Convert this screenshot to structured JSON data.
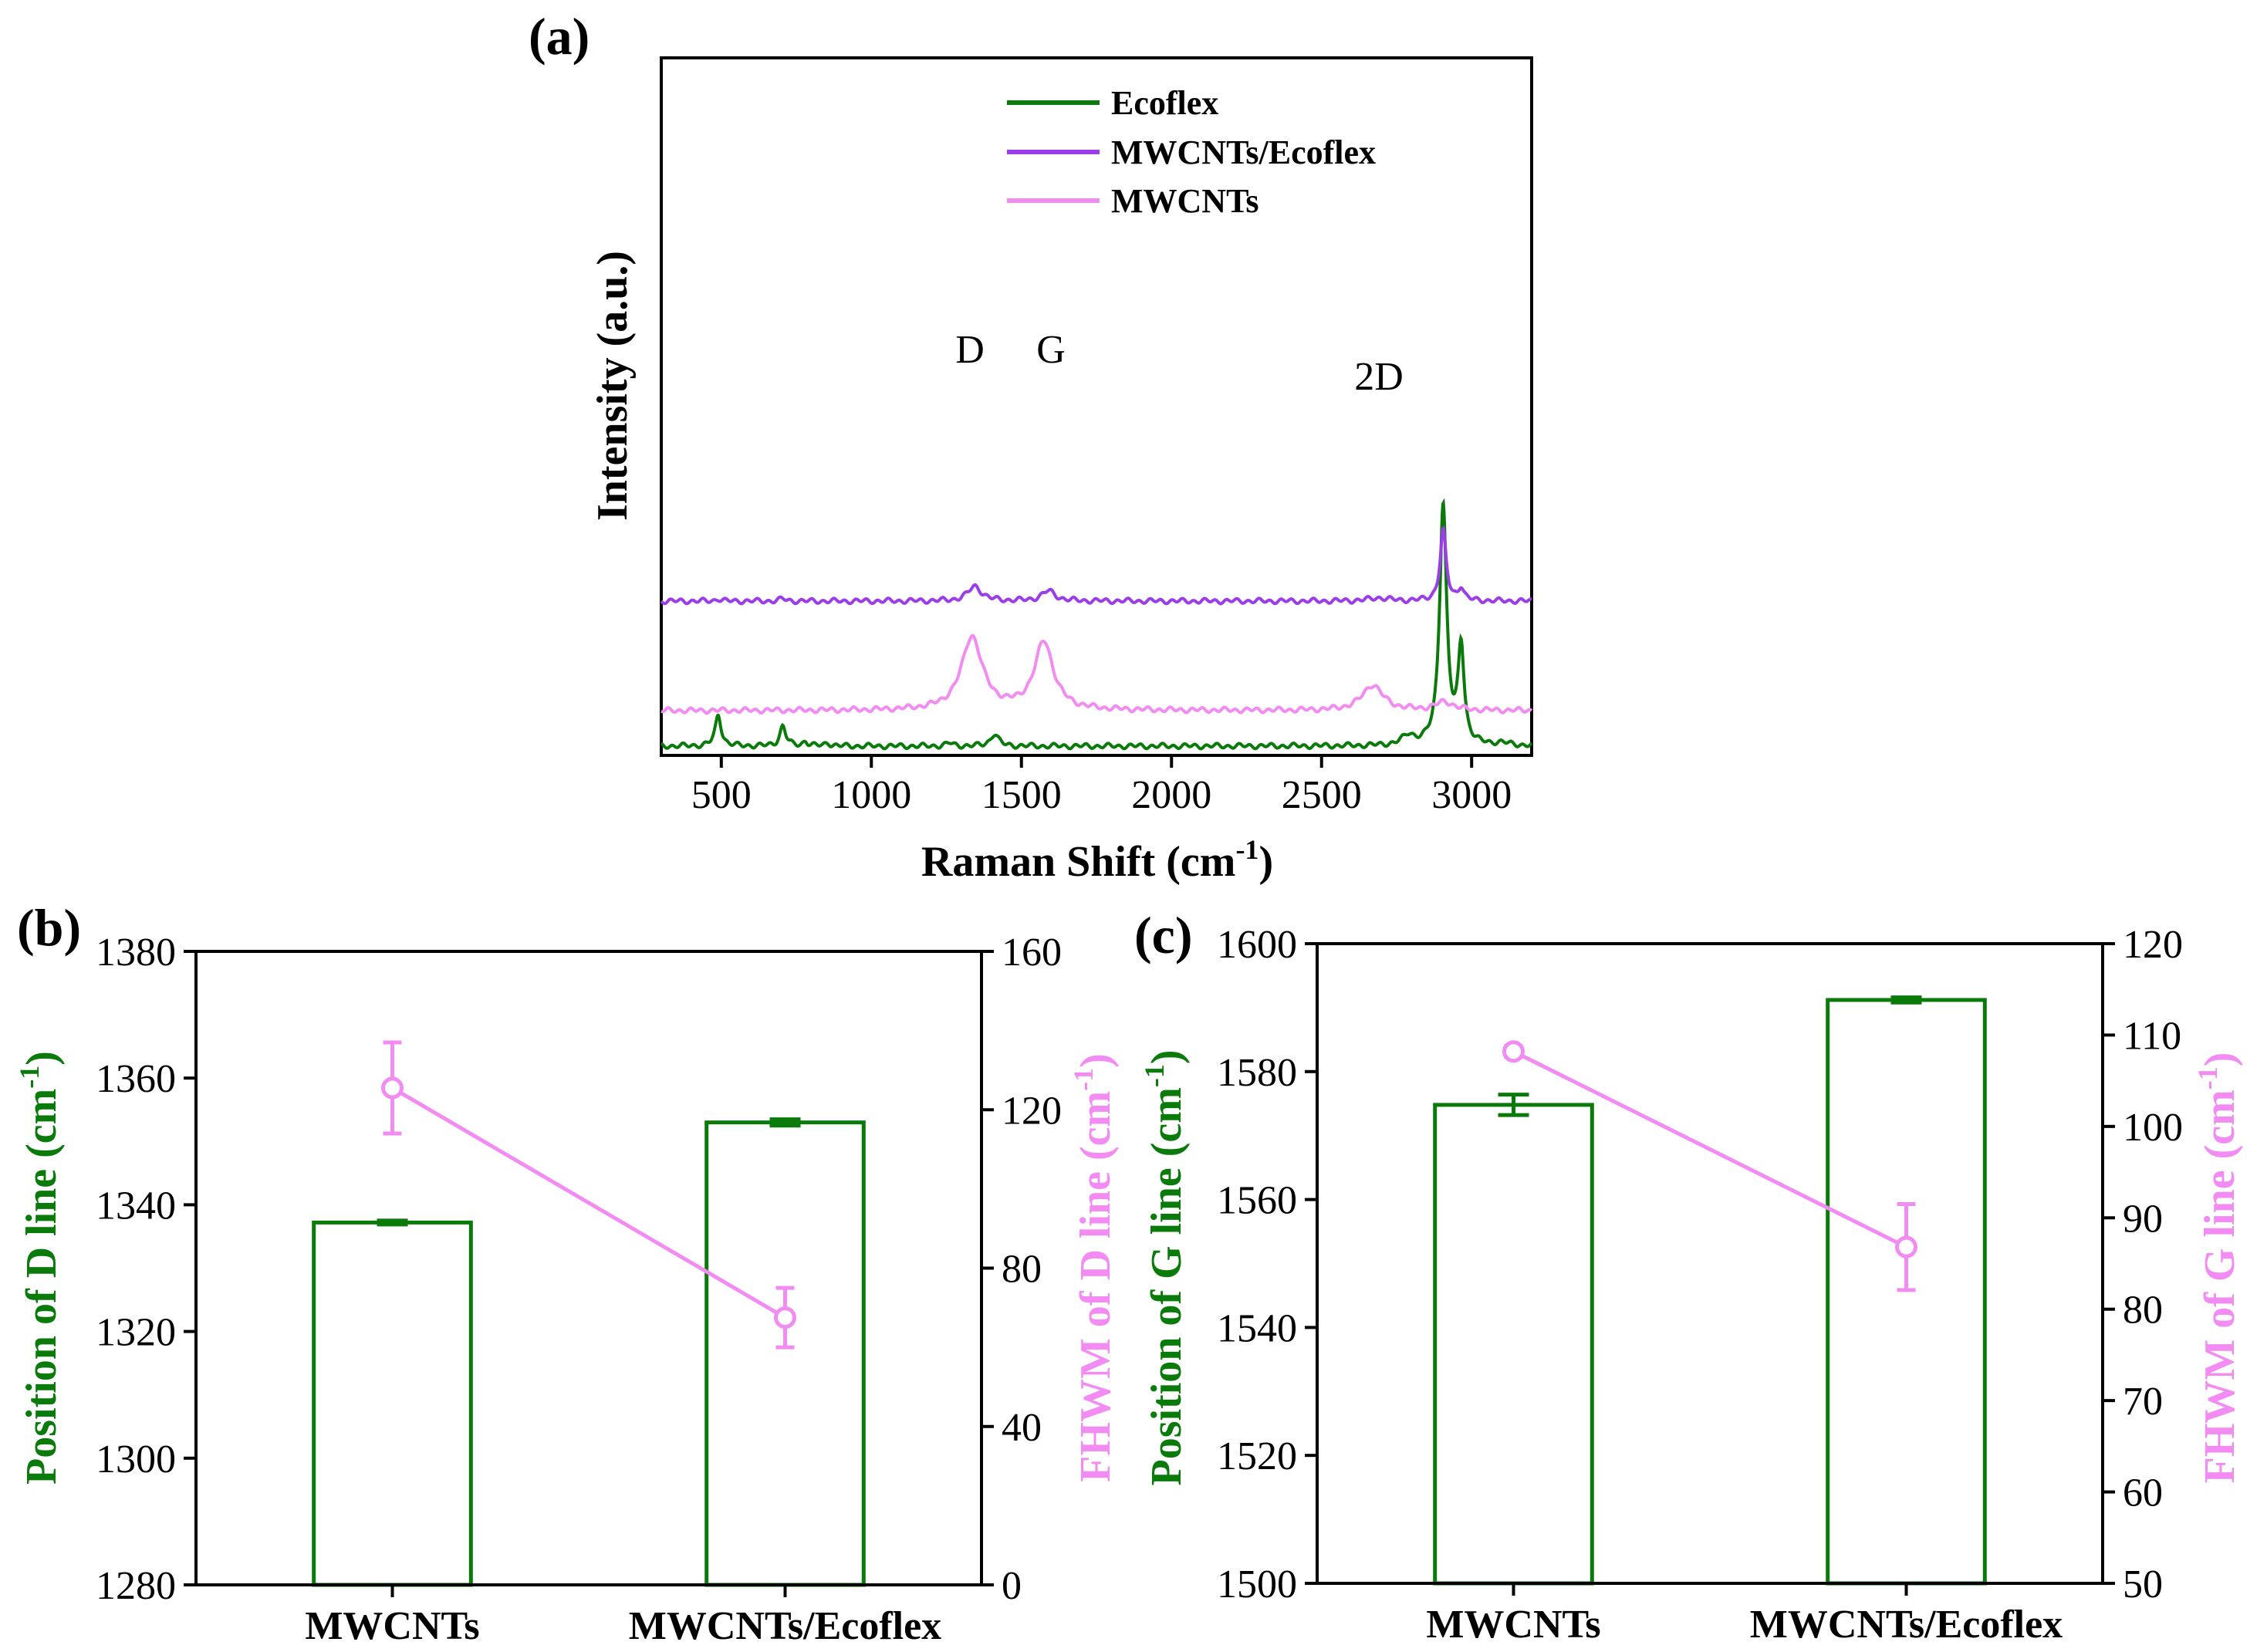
{
  "chart_data": [
    {
      "panel": "(a)",
      "type": "line",
      "xlabel": "Raman Shift (cm",
      "xlabel_sup": "-1",
      "xlabel_close": ")",
      "ylabel": "Intensity (a.u.)",
      "xlim": [
        300,
        3200
      ],
      "xticks": [
        "500",
        "1000",
        "1500",
        "2000",
        "2500",
        "3000"
      ],
      "yticks": [],
      "legend": [
        "Ecoflex",
        "MWCNTs/Ecoflex",
        "MWCNTs"
      ],
      "annotations": [
        "D",
        "G",
        "2D"
      ],
      "series": [
        {
          "name": "Ecoflex",
          "color": "#0a7a0a",
          "baseline": 12,
          "peaks": [
            [
              490,
              40,
              12
            ],
            [
              705,
              26,
              12
            ],
            [
              780,
              6,
              10
            ],
            [
              855,
              4,
              12
            ],
            [
              1260,
              4,
              14
            ],
            [
              1410,
              16,
              16
            ],
            [
              2790,
              12,
              25
            ],
            [
              2905,
              312,
              14
            ],
            [
              2965,
              125,
              12
            ],
            [
              3100,
              3,
              30
            ]
          ]
        },
        {
          "name": "MWCNTs/Ecoflex",
          "color": "#9b3ee8",
          "baseline": 200,
          "peaks": [
            [
              490,
              3,
              10
            ],
            [
              705,
              3,
              12
            ],
            [
              1345,
              19,
              28
            ],
            [
              1590,
              13,
              28
            ],
            [
              2690,
              4,
              40
            ],
            [
              2905,
              91,
              12
            ],
            [
              2965,
              17,
              11
            ]
          ]
        },
        {
          "name": "MWCNTs",
          "color": "#f28cf2",
          "baseline": 58,
          "peaks": [
            [
              1335,
              95,
              42
            ],
            [
              1575,
              88,
              38
            ],
            [
              2670,
              33,
              42
            ],
            [
              2910,
              11,
              35
            ]
          ]
        }
      ]
    },
    {
      "panel": "(b)",
      "type": "bar",
      "categories": [
        "MWCNTs",
        "MWCNTs/Ecoflex"
      ],
      "ylabel": "Position of D line (cm",
      "ylabel_sup": "-1",
      "ylabel_close": ")",
      "y2label": "FHWM of D line (cm",
      "y2label_sup": "-1",
      "y2label_close": ")",
      "ylim": [
        1280,
        1380
      ],
      "yticks": [
        "1280",
        "1300",
        "1320",
        "1340",
        "1360",
        "1380"
      ],
      "y2lim": [
        0,
        160
      ],
      "y2ticks": [
        "0",
        "40",
        "80",
        "120",
        "160"
      ],
      "bars": {
        "values": [
          1337.2,
          1353.0
        ],
        "errors": [
          0.3,
          0.5
        ],
        "color": "#0a7a0a"
      },
      "line": {
        "values": [
          125.5,
          67.5
        ],
        "errors": [
          11.5,
          7.5
        ],
        "color": "#f28cf2"
      }
    },
    {
      "panel": "(c)",
      "type": "bar",
      "categories": [
        "MWCNTs",
        "MWCNTs/Ecoflex"
      ],
      "ylabel": "Position of G line (cm",
      "ylabel_sup": "-1",
      "ylabel_close": ")",
      "y2label": "FHWM of G line (cm",
      "y2label_sup": "-1",
      "y2label_close": ")",
      "ylim": [
        1500,
        1600
      ],
      "yticks": [
        "1500",
        "1520",
        "1540",
        "1560",
        "1580",
        "1600"
      ],
      "y2lim": [
        50,
        120
      ],
      "y2ticks": [
        "50",
        "60",
        "70",
        "80",
        "90",
        "100",
        "110",
        "120"
      ],
      "bars": {
        "values": [
          1574.8,
          1591.2
        ],
        "errors": [
          1.6,
          0.4
        ],
        "color": "#0a7a0a"
      },
      "line": {
        "values": [
          108.2,
          86.8
        ],
        "errors": [
          0.6,
          4.7
        ],
        "color": "#f28cf2"
      }
    }
  ]
}
